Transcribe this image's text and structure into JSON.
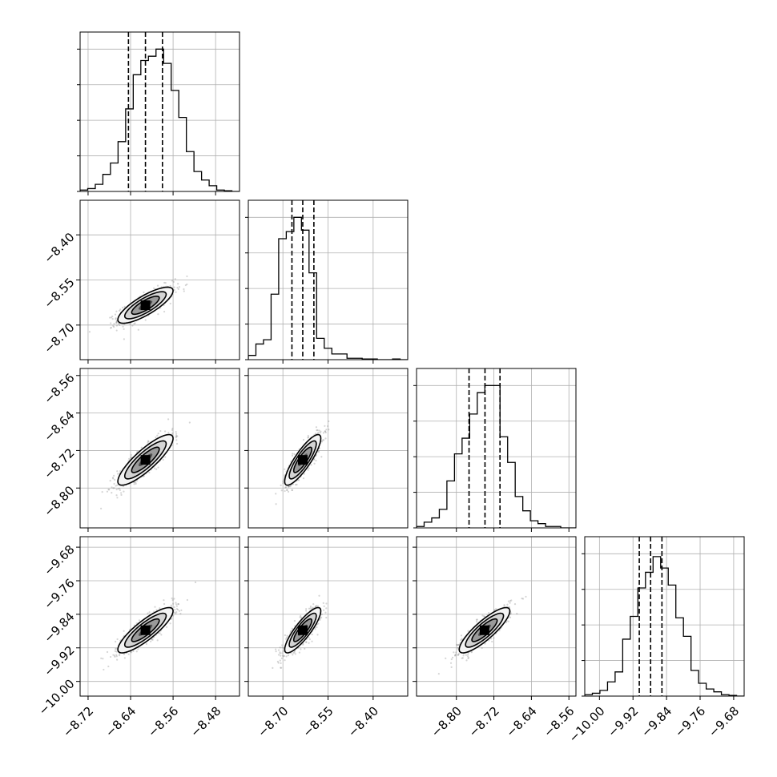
{
  "chart_data": {
    "type": "corner",
    "grid": true,
    "note_labels": "axis labels are not printed in the figure",
    "params": [
      {
        "range": [
          -8.735,
          -8.435
        ],
        "ticks": [
          "−8.72",
          "−8.64",
          "−8.56",
          "−8.48"
        ],
        "tick_values": [
          -8.72,
          -8.64,
          -8.56,
          -8.48
        ],
        "quantiles": [
          -8.644,
          -8.612,
          -8.58
        ],
        "hist": [
          1,
          2,
          5,
          12,
          20,
          35,
          58,
          82,
          92,
          95,
          100,
          90,
          71,
          52,
          28,
          14,
          8,
          4,
          1,
          0.5,
          0
        ]
      },
      {
        "range": [
          -8.815,
          -8.285
        ],
        "ticks": [
          "−8.70",
          "−8.55",
          "−8.40"
        ],
        "tick_values": [
          -8.7,
          -8.55,
          -8.4
        ],
        "quantiles": [
          -8.67,
          -8.634,
          -8.597
        ],
        "hist": [
          3,
          11,
          14,
          46,
          85,
          90,
          100,
          91,
          61,
          15,
          8,
          4,
          4,
          1,
          1,
          0.5,
          0.5,
          0,
          0,
          0.5,
          0
        ]
      },
      {
        "range": [
          -8.885,
          -8.545
        ],
        "ticks": [
          "−8.80",
          "−8.72",
          "−8.64",
          "−8.56"
        ],
        "tick_values": [
          -8.8,
          -8.72,
          -8.64,
          -8.56
        ],
        "quantiles": [
          -8.773,
          -8.739,
          -8.707
        ],
        "hist": [
          1,
          4,
          7,
          13,
          33,
          52,
          63,
          80,
          95,
          100,
          100,
          64,
          46,
          22,
          12,
          5,
          3,
          1,
          1,
          0,
          0
        ]
      },
      {
        "range": [
          -10.035,
          -9.655
        ],
        "ticks": [
          "−10.00",
          "−9.92",
          "−9.84",
          "−9.76",
          "−9.68"
        ],
        "tick_values": [
          -10.0,
          -9.92,
          -9.84,
          -9.76,
          -9.68
        ],
        "quantiles": [
          -9.905,
          -9.878,
          -9.851
        ],
        "hist": [
          1,
          2,
          4,
          10,
          17,
          40,
          56,
          76,
          87,
          98,
          90,
          78,
          55,
          42,
          18,
          9,
          5,
          3,
          1,
          0.5,
          0
        ]
      }
    ],
    "pairs": [
      {
        "row": 1,
        "col": 0,
        "center": [
          -8.612,
          -8.634
        ],
        "sigma": [
          0.026,
          0.03
        ],
        "rho": 0.8
      },
      {
        "row": 2,
        "col": 0,
        "center": [
          -8.612,
          -8.74
        ],
        "sigma": [
          0.026,
          0.027
        ],
        "rho": 0.85
      },
      {
        "row": 2,
        "col": 1,
        "center": [
          -8.634,
          -8.74
        ],
        "sigma": [
          0.03,
          0.027
        ],
        "rho": 0.85
      },
      {
        "row": 3,
        "col": 0,
        "center": [
          -8.612,
          -9.878
        ],
        "sigma": [
          0.026,
          0.027
        ],
        "rho": 0.85
      },
      {
        "row": 3,
        "col": 1,
        "center": [
          -8.634,
          -9.878
        ],
        "sigma": [
          0.03,
          0.027
        ],
        "rho": 0.85
      },
      {
        "row": 3,
        "col": 2,
        "center": [
          -8.74,
          -9.878
        ],
        "sigma": [
          0.027,
          0.027
        ],
        "rho": 0.85
      }
    ]
  }
}
